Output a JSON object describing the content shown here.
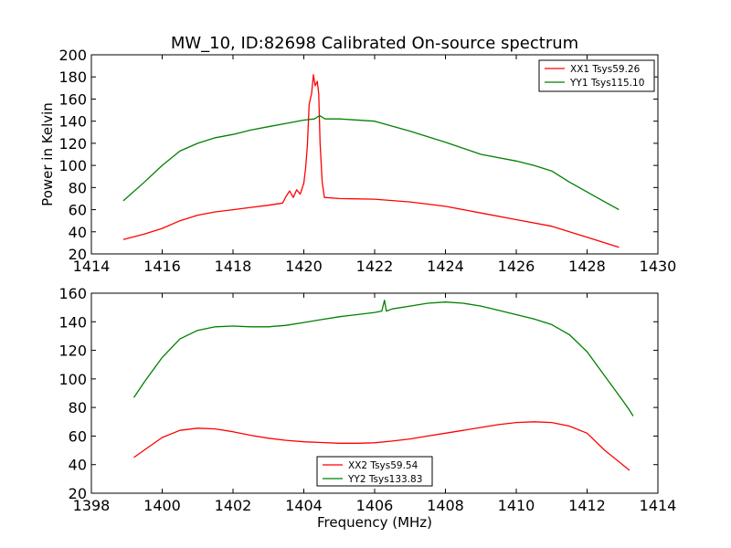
{
  "title": "MW_10, ID:82698 Calibrated On-source spectrum",
  "chart_data": [
    {
      "type": "line",
      "xlim": [
        1414,
        1430
      ],
      "ylim": [
        20,
        200
      ],
      "x_ticks": [
        1414,
        1416,
        1418,
        1420,
        1422,
        1424,
        1426,
        1428,
        1430
      ],
      "y_ticks": [
        20,
        40,
        60,
        80,
        100,
        120,
        140,
        160,
        180,
        200
      ],
      "xlabel": "",
      "ylabel": "Power in Kelvin",
      "grid": false,
      "legend_position": "top-right",
      "series": [
        {
          "name": "XX1 Tsys59.26",
          "color": "#ff0000",
          "points": [
            [
              1414.9,
              33
            ],
            [
              1415.5,
              38
            ],
            [
              1416,
              43
            ],
            [
              1416.5,
              50
            ],
            [
              1417,
              55
            ],
            [
              1417.5,
              58
            ],
            [
              1418,
              60
            ],
            [
              1418.5,
              62
            ],
            [
              1419,
              64
            ],
            [
              1419.4,
              66
            ],
            [
              1419.5,
              72
            ],
            [
              1419.6,
              77
            ],
            [
              1419.7,
              71
            ],
            [
              1419.8,
              78
            ],
            [
              1419.9,
              74
            ],
            [
              1420.0,
              84
            ],
            [
              1420.05,
              97
            ],
            [
              1420.1,
              118
            ],
            [
              1420.15,
              155
            ],
            [
              1420.22,
              165
            ],
            [
              1420.27,
              182
            ],
            [
              1420.32,
              172
            ],
            [
              1420.38,
              176
            ],
            [
              1420.42,
              165
            ],
            [
              1420.46,
              120
            ],
            [
              1420.52,
              85
            ],
            [
              1420.58,
              71
            ],
            [
              1421,
              70
            ],
            [
              1422,
              69.5
            ],
            [
              1423,
              67
            ],
            [
              1424,
              63
            ],
            [
              1425,
              57
            ],
            [
              1426,
              51
            ],
            [
              1427,
              45
            ],
            [
              1428,
              35
            ],
            [
              1428.9,
              26
            ]
          ]
        },
        {
          "name": "YY1 Tsys115.10",
          "color": "#008000",
          "points": [
            [
              1414.9,
              68
            ],
            [
              1415.5,
              85
            ],
            [
              1416,
              100
            ],
            [
              1416.5,
              113
            ],
            [
              1417,
              120
            ],
            [
              1417.5,
              125
            ],
            [
              1418,
              128
            ],
            [
              1418.5,
              132
            ],
            [
              1419,
              135
            ],
            [
              1419.5,
              138
            ],
            [
              1420,
              141
            ],
            [
              1420.3,
              142
            ],
            [
              1420.45,
              145
            ],
            [
              1420.6,
              142
            ],
            [
              1421,
              142
            ],
            [
              1422,
              140
            ],
            [
              1423,
              131
            ],
            [
              1424,
              121
            ],
            [
              1425,
              110
            ],
            [
              1426,
              104
            ],
            [
              1426.5,
              100
            ],
            [
              1427,
              95
            ],
            [
              1427.5,
              85
            ],
            [
              1428,
              76
            ],
            [
              1428.5,
              67
            ],
            [
              1428.9,
              60
            ]
          ]
        }
      ]
    },
    {
      "type": "line",
      "xlim": [
        1398,
        1414
      ],
      "ylim": [
        20,
        160
      ],
      "x_ticks": [
        1398,
        1400,
        1402,
        1404,
        1406,
        1408,
        1410,
        1412,
        1414
      ],
      "y_ticks": [
        20,
        40,
        60,
        80,
        100,
        120,
        140,
        160
      ],
      "xlabel": "Frequency (MHz)",
      "ylabel": "",
      "grid": false,
      "legend_position": "bottom-center",
      "series": [
        {
          "name": "XX2 Tsys59.54",
          "color": "#ff0000",
          "points": [
            [
              1399.2,
              45
            ],
            [
              1399.6,
              52
            ],
            [
              1400,
              59
            ],
            [
              1400.5,
              64
            ],
            [
              1401,
              65.5
            ],
            [
              1401.5,
              65
            ],
            [
              1402,
              63
            ],
            [
              1402.5,
              60.5
            ],
            [
              1403,
              58.5
            ],
            [
              1403.5,
              57
            ],
            [
              1404,
              56
            ],
            [
              1404.5,
              55.5
            ],
            [
              1405,
              55
            ],
            [
              1405.5,
              55
            ],
            [
              1406,
              55.3
            ],
            [
              1406.5,
              56.5
            ],
            [
              1407,
              58
            ],
            [
              1407.5,
              60
            ],
            [
              1408,
              62
            ],
            [
              1408.5,
              64
            ],
            [
              1409,
              66
            ],
            [
              1409.5,
              68
            ],
            [
              1410,
              69.5
            ],
            [
              1410.5,
              70
            ],
            [
              1411,
              69.5
            ],
            [
              1411.5,
              67
            ],
            [
              1412,
              62
            ],
            [
              1412.5,
              50
            ],
            [
              1413,
              40
            ],
            [
              1413.2,
              36
            ]
          ]
        },
        {
          "name": "YY2 Tsys133.83",
          "color": "#008000",
          "points": [
            [
              1399.2,
              87
            ],
            [
              1399.5,
              98
            ],
            [
              1400,
              115
            ],
            [
              1400.5,
              128
            ],
            [
              1401,
              134
            ],
            [
              1401.5,
              136.5
            ],
            [
              1402,
              137
            ],
            [
              1402.5,
              136.5
            ],
            [
              1403,
              136.5
            ],
            [
              1403.5,
              137.5
            ],
            [
              1404,
              139.5
            ],
            [
              1404.5,
              141.5
            ],
            [
              1405,
              143.5
            ],
            [
              1405.5,
              145
            ],
            [
              1406,
              146.5
            ],
            [
              1406.2,
              147.5
            ],
            [
              1406.28,
              155
            ],
            [
              1406.33,
              147.5
            ],
            [
              1406.5,
              149
            ],
            [
              1407,
              151
            ],
            [
              1407.5,
              153
            ],
            [
              1408,
              153.8
            ],
            [
              1408.5,
              153
            ],
            [
              1409,
              151
            ],
            [
              1409.5,
              148
            ],
            [
              1410,
              145
            ],
            [
              1410.5,
              142
            ],
            [
              1411,
              138
            ],
            [
              1411.5,
              131
            ],
            [
              1412,
              119
            ],
            [
              1412.5,
              102
            ],
            [
              1413,
              85
            ],
            [
              1413.2,
              78
            ],
            [
              1413.3,
              74
            ]
          ]
        }
      ]
    }
  ]
}
